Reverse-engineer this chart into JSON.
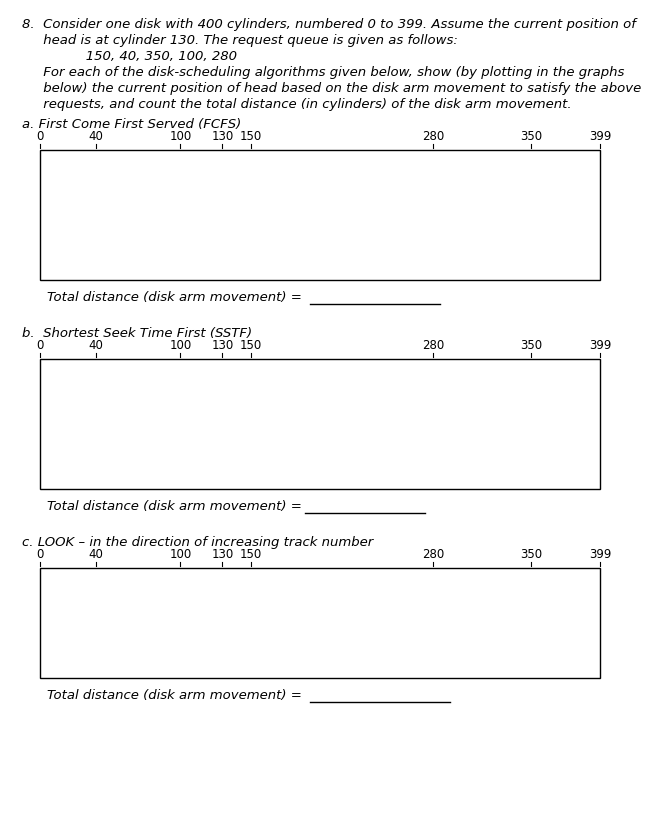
{
  "title_line1": "8.  Consider one disk with 400 cylinders, numbered 0 to 399. Assume the current position of",
  "title_line2": "     head is at cylinder 130. The request queue is given as follows:",
  "title_line3": "               150, 40, 350, 100, 280",
  "title_line4": "     For each of the disk-scheduling algorithms given below, show (by plotting in the graphs",
  "title_line5": "     below) the current position of head based on the disk arm movement to satisfy the above",
  "title_line6": "     requests, and count the total distance (in cylinders) of the disk arm movement.",
  "section_a_label": "a. First Come First Served (FCFS)",
  "section_b_label": "b.  Shortest Seek Time First (SSTF)",
  "section_c_label": "c. LOOK – in the direction of increasing track number",
  "total_dist_label": "Total distance (disk arm movement) = ",
  "tick_positions": [
    0,
    40,
    100,
    130,
    150,
    280,
    350,
    399
  ],
  "tick_labels": [
    "0",
    "40",
    "100",
    "130",
    "150",
    "280",
    "350",
    "399"
  ],
  "xmin": 0,
  "xmax": 399,
  "bg_color": "#ffffff",
  "text_color": "#000000",
  "box_color": "#000000",
  "underline_color": "#000000",
  "header_fontsize": 9.5,
  "label_fontsize": 9.5,
  "tick_fontsize": 8.5,
  "total_fontsize": 9.5
}
